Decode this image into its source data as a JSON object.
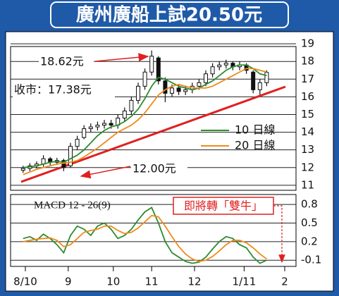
{
  "chart_data": [
    {
      "type": "candlestick",
      "title": "廣州廣船上試20.50元",
      "x": [
        4,
        7,
        10,
        13,
        16,
        19,
        22,
        25,
        28,
        31,
        34,
        37,
        40,
        43,
        46,
        49,
        52,
        55,
        58,
        61,
        64,
        67,
        70,
        73,
        76,
        79,
        82,
        85,
        88,
        91,
        94,
        97,
        100,
        103,
        106,
        109,
        112
      ],
      "open": [
        11.85,
        11.95,
        12.1,
        12.2,
        12.5,
        12.3,
        12.4,
        12.1,
        13.2,
        13.7,
        14.2,
        14.3,
        14.4,
        14.5,
        14.4,
        14.8,
        15.2,
        15.8,
        16.6,
        17.4,
        18.2,
        16.9,
        16.2,
        16.5,
        16.3,
        16.4,
        16.6,
        16.8,
        17.3,
        17.7,
        17.8,
        17.9,
        17.7,
        17.8,
        17.4,
        16.4,
        16.8
      ],
      "high": [
        12.1,
        12.25,
        12.35,
        12.7,
        12.6,
        12.55,
        12.5,
        13.4,
        13.8,
        14.4,
        14.5,
        14.6,
        14.7,
        14.7,
        15.0,
        15.4,
        16.0,
        16.8,
        17.6,
        18.62,
        18.3,
        17.1,
        16.7,
        16.7,
        16.6,
        16.8,
        17.0,
        17.5,
        17.9,
        18.0,
        18.1,
        18.0,
        18.0,
        17.9,
        17.5,
        17.0,
        17.5
      ],
      "low": [
        11.7,
        11.8,
        11.95,
        12.05,
        12.1,
        12.15,
        11.8,
        12.0,
        13.0,
        13.6,
        14.0,
        14.1,
        14.2,
        14.2,
        14.2,
        14.6,
        15.0,
        15.6,
        16.4,
        17.2,
        16.7,
        15.7,
        16.0,
        16.1,
        16.1,
        16.2,
        16.4,
        16.6,
        17.1,
        17.5,
        17.6,
        17.5,
        17.5,
        17.3,
        16.2,
        16.1,
        16.6
      ],
      "close": [
        11.95,
        12.1,
        12.2,
        12.5,
        12.3,
        12.4,
        12.0,
        13.2,
        13.6,
        14.2,
        14.3,
        14.4,
        14.5,
        14.4,
        14.8,
        15.2,
        15.8,
        16.6,
        17.4,
        18.3,
        16.9,
        16.2,
        16.5,
        16.3,
        16.4,
        16.6,
        16.8,
        17.3,
        17.7,
        17.8,
        17.9,
        17.7,
        17.8,
        17.5,
        16.4,
        16.8,
        17.38
      ],
      "color": "#111111",
      "series": [
        {
          "name": "10 日線",
          "color": "#2e8b2e",
          "values": [
            12.0,
            12.05,
            12.1,
            12.2,
            12.3,
            12.35,
            12.3,
            12.5,
            12.7,
            13.0,
            13.4,
            13.8,
            14.1,
            14.3,
            14.4,
            14.6,
            14.9,
            15.3,
            15.9,
            16.6,
            17.1,
            17.0,
            16.8,
            16.6,
            16.5,
            16.4,
            16.5,
            16.7,
            16.9,
            17.2,
            17.5,
            17.7,
            17.8,
            17.8,
            17.6,
            17.3,
            17.2
          ]
        },
        {
          "name": "20 日線",
          "color": "#f08a1c",
          "values": [
            11.6,
            11.75,
            11.9,
            12.0,
            12.1,
            12.2,
            12.25,
            12.3,
            12.4,
            12.6,
            12.85,
            13.1,
            13.4,
            13.7,
            14.0,
            14.2,
            14.4,
            14.7,
            15.1,
            15.6,
            16.1,
            16.4,
            16.6,
            16.7,
            16.6,
            16.5,
            16.5,
            16.5,
            16.6,
            16.8,
            17.0,
            17.2,
            17.4,
            17.6,
            17.6,
            17.5,
            17.4
          ]
        }
      ],
      "annotations": [
        "18.62元",
        "收市：17.38元",
        "12.00元"
      ],
      "xlim": [
        0,
        125
      ],
      "ylim": [
        10.7,
        19.1
      ],
      "yticks": [
        11,
        12,
        13,
        14,
        15,
        16,
        17,
        18,
        19
      ],
      "grid": true
    },
    {
      "type": "line",
      "title": "MACD 12 - 26(9)",
      "x": [
        4,
        7,
        10,
        13,
        16,
        19,
        22,
        25,
        28,
        31,
        34,
        37,
        40,
        43,
        46,
        49,
        52,
        55,
        58,
        61,
        64,
        67,
        70,
        73,
        76,
        79,
        82,
        85,
        88,
        91,
        94,
        97,
        100,
        103,
        106,
        109,
        112
      ],
      "series": [
        {
          "color": "#2e8b2e",
          "values": [
            0.25,
            0.28,
            0.22,
            0.32,
            0.25,
            0.15,
            0.02,
            0.3,
            0.45,
            0.4,
            0.3,
            0.45,
            0.5,
            0.4,
            0.25,
            0.3,
            0.4,
            0.55,
            0.68,
            0.75,
            0.5,
            0.2,
            0.02,
            -0.05,
            -0.12,
            -0.15,
            -0.13,
            -0.05,
            0.08,
            0.2,
            0.28,
            0.25,
            0.15,
            0.1,
            -0.05,
            -0.15,
            -0.1
          ]
        },
        {
          "color": "#f08a1c",
          "values": [
            0.2,
            0.22,
            0.24,
            0.25,
            0.26,
            0.22,
            0.12,
            0.15,
            0.25,
            0.35,
            0.38,
            0.4,
            0.45,
            0.45,
            0.38,
            0.33,
            0.35,
            0.42,
            0.52,
            0.62,
            0.6,
            0.45,
            0.28,
            0.12,
            0.0,
            -0.08,
            -0.12,
            -0.1,
            -0.04,
            0.05,
            0.15,
            0.22,
            0.22,
            0.18,
            0.1,
            0.0,
            -0.08
          ]
        }
      ],
      "annotations": [
        "即將轉「雙牛」"
      ],
      "xlim": [
        0,
        125
      ],
      "ylim": [
        -0.2,
        0.96
      ],
      "yticks": [
        0.8,
        0.5,
        0.2,
        -0.1
      ],
      "grid": true,
      "xticks": [
        {
          "value": 5,
          "label": "8/10"
        },
        {
          "value": 24,
          "label": "9"
        },
        {
          "value": 44,
          "label": "10"
        },
        {
          "value": 61,
          "label": "11"
        },
        {
          "value": 80,
          "label": "12"
        },
        {
          "value": 102,
          "label": "1/11"
        },
        {
          "value": 120,
          "label": "2"
        }
      ]
    }
  ]
}
